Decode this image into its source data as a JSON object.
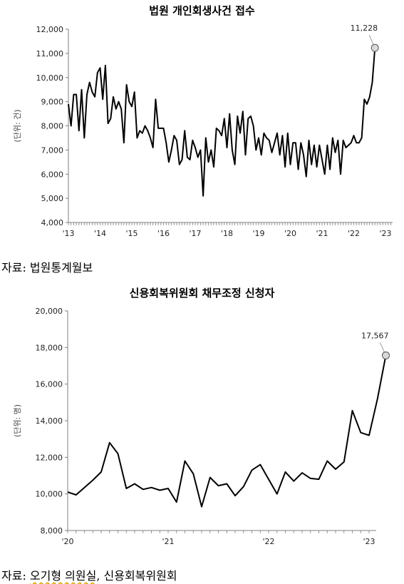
{
  "chart_data": [
    {
      "type": "line",
      "title": "법원 개인회생사건 접수",
      "ylabel": "(단위: 건)",
      "ylim": [
        4000,
        12000
      ],
      "yticks": [
        "4,000",
        "5,000",
        "6,000",
        "7,000",
        "8,000",
        "9,000",
        "10,000",
        "11,000",
        "12,000"
      ],
      "ytick_values": [
        4000,
        5000,
        6000,
        7000,
        8000,
        9000,
        10000,
        11000,
        12000
      ],
      "xticks": [
        "'13",
        "'14",
        "'15",
        "'16",
        "'17",
        "'18",
        "'19",
        "'20",
        "'21",
        "'22",
        "'23"
      ],
      "x_start": "2013-01",
      "x_frequency": "monthly",
      "annotation": "11,228",
      "series": [
        {
          "values": [
            8900,
            8000,
            9300,
            9300,
            7800,
            9500,
            7500,
            9300,
            9800,
            9400,
            9200,
            10200,
            10400,
            9100,
            10500,
            8100,
            8300,
            9200,
            8700,
            9000,
            8700,
            7300,
            9700,
            9000,
            8800,
            9400,
            7500,
            7800,
            7700,
            8000,
            7800,
            7500,
            7100,
            9100,
            7900,
            7900,
            7900,
            7300,
            6500,
            7000,
            7600,
            7400,
            6400,
            6600,
            7800,
            6700,
            6600,
            7400,
            7100,
            6700,
            7000,
            5100,
            7500,
            6500,
            7000,
            6300,
            7900,
            7800,
            7600,
            8300,
            7100,
            8500,
            7000,
            6400,
            8400,
            7700,
            8600,
            6800,
            8300,
            8400,
            8000,
            7000,
            7500,
            6800,
            7700,
            7500,
            7400,
            6900,
            7300,
            7700,
            6800,
            7600,
            6300,
            7700,
            6400,
            7300,
            7300,
            6200,
            7300,
            6800,
            5900,
            7400,
            6400,
            7200,
            6300,
            7200,
            6600,
            6000,
            7200,
            6200,
            7500,
            6900,
            7400,
            6000,
            7400,
            7100,
            7200,
            7300,
            7600,
            7300,
            7300,
            7500,
            9100,
            8900,
            9200,
            9800,
            11228
          ]
        }
      ]
    },
    {
      "type": "line",
      "title": "신용회복위원회 채무조정 신청자",
      "ylabel": "(단위: 명)",
      "ylim": [
        8000,
        20000
      ],
      "yticks": [
        "8,000",
        "10,000",
        "12,000",
        "14,000",
        "16,000",
        "18,000",
        "20,000"
      ],
      "ytick_values": [
        8000,
        10000,
        12000,
        14000,
        16000,
        18000,
        20000
      ],
      "xticks": [
        "'20",
        "'21",
        "'22",
        "'23"
      ],
      "x_start": "2020-01",
      "x_frequency": "monthly",
      "annotation": "17,567",
      "series": [
        {
          "values": [
            10100,
            9950,
            10350,
            10750,
            11200,
            12800,
            12200,
            10300,
            10550,
            10250,
            10350,
            10200,
            10300,
            9550,
            11800,
            11100,
            9300,
            10900,
            10450,
            10550,
            9900,
            10400,
            11300,
            11600,
            10800,
            10000,
            11200,
            10700,
            11150,
            10850,
            10800,
            11800,
            11350,
            11750,
            14550,
            13350,
            13200,
            15200,
            17567
          ]
        }
      ]
    }
  ],
  "sources": {
    "first_prefix": "자료: ",
    "first_name": "법원통계월보",
    "second_prefix": "자료: ",
    "second_name_1": "오기형 의원실",
    "second_sep": ", ",
    "second_name_2": "신용회복위원회"
  }
}
